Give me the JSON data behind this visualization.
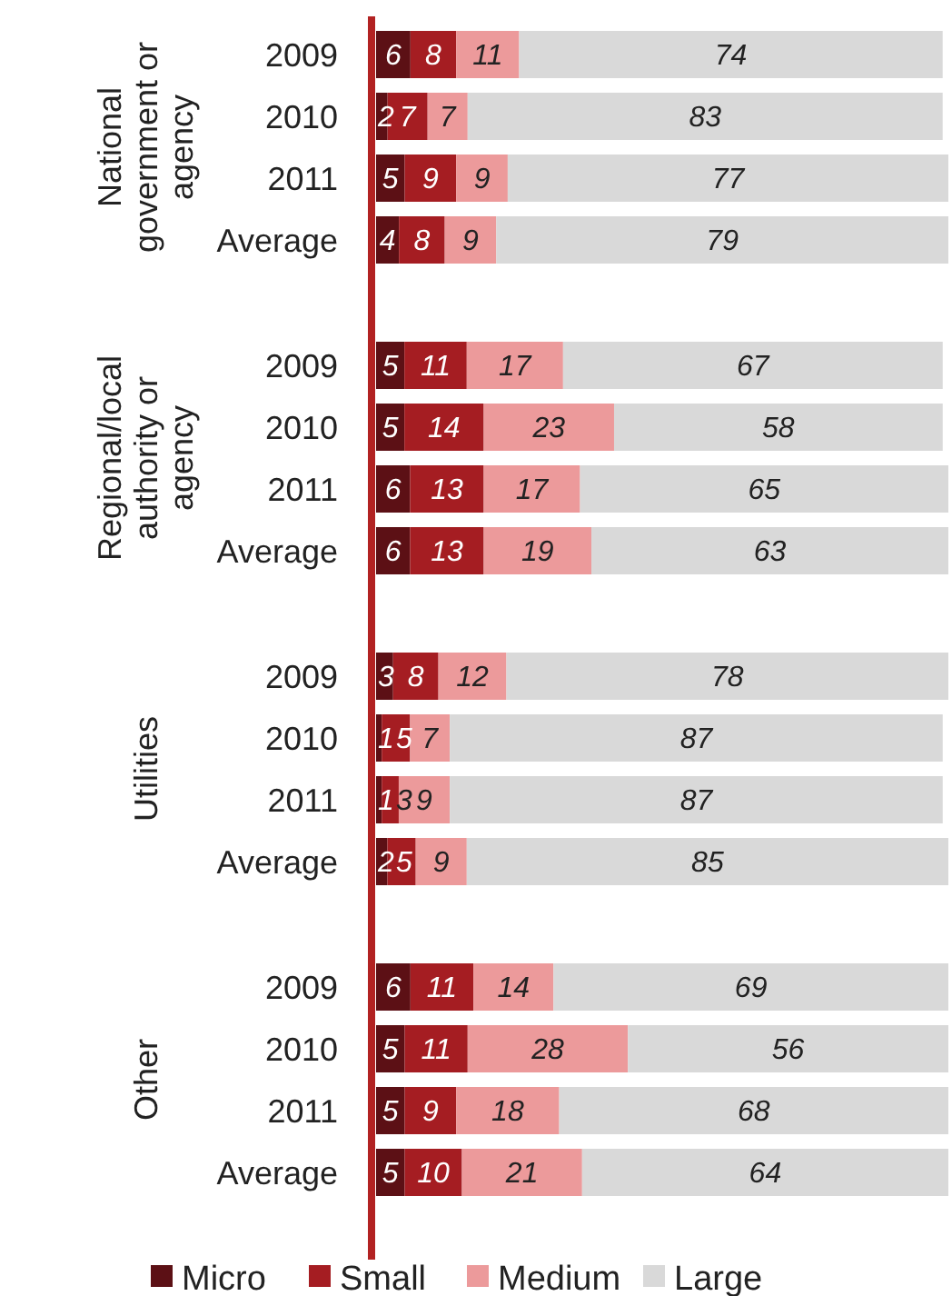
{
  "chart_data": [
    {
      "type": "bar",
      "orientation": "horizontal",
      "stacked": true,
      "ylabel": "National government or agency",
      "categories": [
        "2009",
        "2010",
        "2011",
        "Average"
      ],
      "data_labels": true,
      "series": [
        {
          "color": "#5c1015",
          "values": [
            6,
            2,
            5,
            4
          ]
        },
        {
          "color": "#a51d22",
          "values": [
            8,
            7,
            9,
            8
          ]
        },
        {
          "color": "#ec9a9b",
          "values": [
            11,
            7,
            9,
            9
          ]
        },
        {
          "color": "#d9d9d9",
          "values": [
            74,
            83,
            77,
            79
          ]
        }
      ]
    },
    {
      "type": "bar",
      "orientation": "horizontal",
      "stacked": true,
      "ylabel": "Regional/local authority or agency",
      "categories": [
        "2009",
        "2010",
        "2011",
        "Average"
      ],
      "data_labels": true,
      "series": [
        {
          "color": "#5c1015",
          "values": [
            5,
            5,
            6,
            6
          ]
        },
        {
          "color": "#a51d22",
          "values": [
            11,
            14,
            13,
            13
          ]
        },
        {
          "color": "#ec9a9b",
          "values": [
            17,
            23,
            17,
            19
          ]
        },
        {
          "color": "#d9d9d9",
          "values": [
            67,
            58,
            65,
            63
          ]
        }
      ]
    },
    {
      "type": "bar",
      "orientation": "horizontal",
      "stacked": true,
      "ylabel": "Utilities",
      "categories": [
        "2009",
        "2010",
        "2011",
        "Average"
      ],
      "data_labels": true,
      "series": [
        {
          "color": "#5c1015",
          "values": [
            3,
            1,
            1,
            2
          ]
        },
        {
          "color": "#a51d22",
          "values": [
            8,
            5,
            3,
            5
          ]
        },
        {
          "color": "#ec9a9b",
          "values": [
            12,
            7,
            9,
            9
          ]
        },
        {
          "color": "#d9d9d9",
          "values": [
            78,
            87,
            87,
            85
          ]
        }
      ]
    },
    {
      "type": "bar",
      "orientation": "horizontal",
      "stacked": true,
      "ylabel": "Other",
      "categories": [
        "2009",
        "2010",
        "2011",
        "Average"
      ],
      "data_labels": true,
      "legend": "bottom",
      "series": [
        {
          "name": "Micro",
          "color": "#5c1015",
          "values": [
            6,
            5,
            5,
            5
          ]
        },
        {
          "name": "Small",
          "color": "#a51d22",
          "values": [
            11,
            11,
            9,
            10
          ]
        },
        {
          "name": "Medium",
          "color": "#ec9a9b",
          "values": [
            14,
            28,
            18,
            21
          ]
        },
        {
          "name": "Large",
          "color": "#d9d9d9",
          "values": [
            69,
            56,
            68,
            64
          ]
        }
      ]
    }
  ]
}
